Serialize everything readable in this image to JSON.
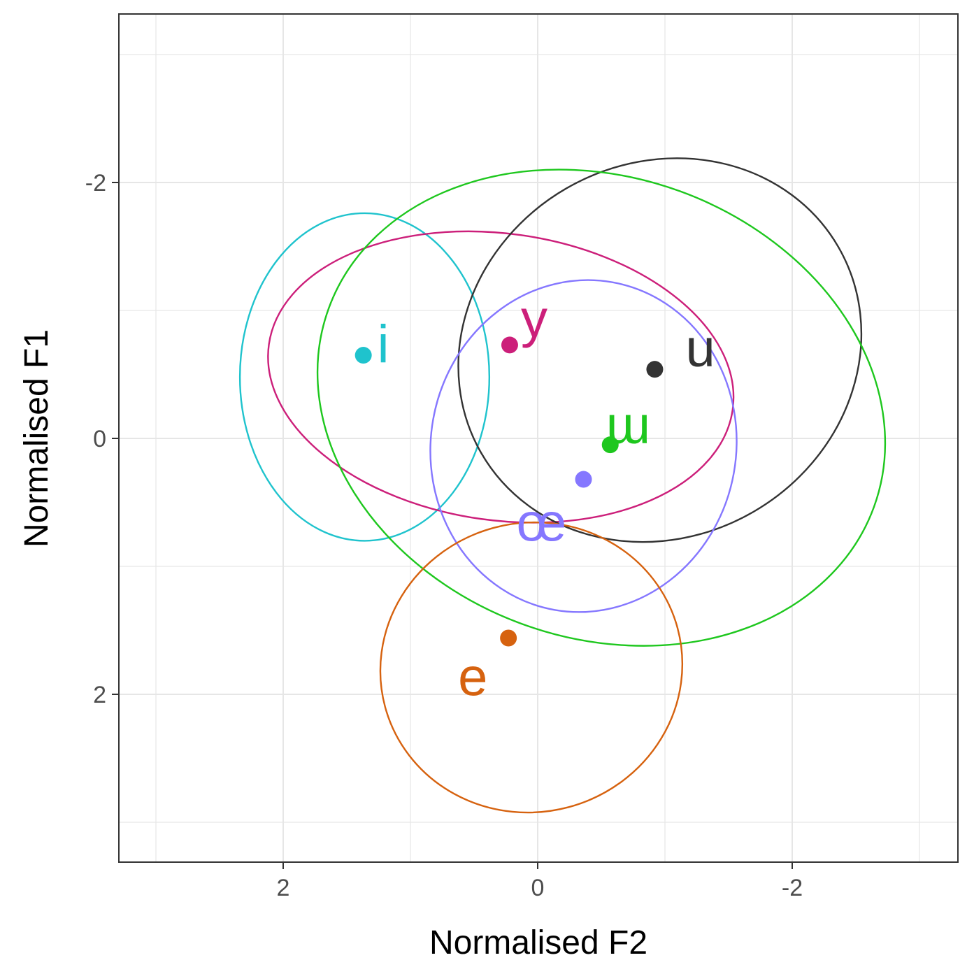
{
  "chart_data": {
    "type": "scatter",
    "title": "",
    "xlabel": "Normalised F2",
    "ylabel": "Normalised F1",
    "x_reversed": true,
    "y_reversed": true,
    "xlim": [
      3.2,
      -3.3
    ],
    "ylim": [
      -3.3,
      3.3
    ],
    "x_ticks": [
      2,
      0,
      -2
    ],
    "y_ticks": [
      -2,
      0,
      2
    ],
    "x_tick_labels": [
      "2",
      "0",
      "-2"
    ],
    "y_tick_labels": [
      "-2",
      "0",
      "2"
    ],
    "grid": true,
    "legend": "none",
    "series": [
      {
        "name": "i",
        "color": "#1fc3cd",
        "x": 1.37,
        "y": -0.65,
        "ellipse": {
          "cx": 1.36,
          "cy": -0.48,
          "rx": 0.98,
          "ry": 1.28,
          "angle_deg": 0
        }
      },
      {
        "name": "y",
        "color": "#cc1f7a",
        "x": 0.22,
        "y": -0.73,
        "ellipse": {
          "cx": 0.29,
          "cy": -0.48,
          "rx": 1.84,
          "ry": 1.12,
          "angle_deg": 8
        }
      },
      {
        "name": "u",
        "color": "#333333",
        "x": -0.92,
        "y": -0.54,
        "ellipse": {
          "cx": -0.96,
          "cy": -0.69,
          "rx": 1.62,
          "ry": 1.46,
          "angle_deg": -30
        }
      },
      {
        "name": "ɯ",
        "color": "#1ec71e",
        "x": -0.57,
        "y": 0.05,
        "ellipse": {
          "cx": -0.5,
          "cy": -0.24,
          "rx": 2.28,
          "ry": 1.8,
          "angle_deg": 20
        }
      },
      {
        "name": "œ",
        "color": "#8577ff",
        "x": -0.36,
        "y": 0.32,
        "ellipse": {
          "cx": -0.36,
          "cy": 0.06,
          "rx": 1.2,
          "ry": 1.3,
          "angle_deg": 10
        }
      },
      {
        "name": "e",
        "color": "#d6620f",
        "x": 0.23,
        "y": 1.56,
        "ellipse": {
          "cx": 0.05,
          "cy": 1.79,
          "rx": 1.19,
          "ry": 1.13,
          "angle_deg": -15
        }
      }
    ],
    "label_text": {
      "i": "i",
      "y": "y",
      "u": "u",
      "ɯ": "ɯ",
      "œ": "œ",
      "e": "e"
    }
  }
}
